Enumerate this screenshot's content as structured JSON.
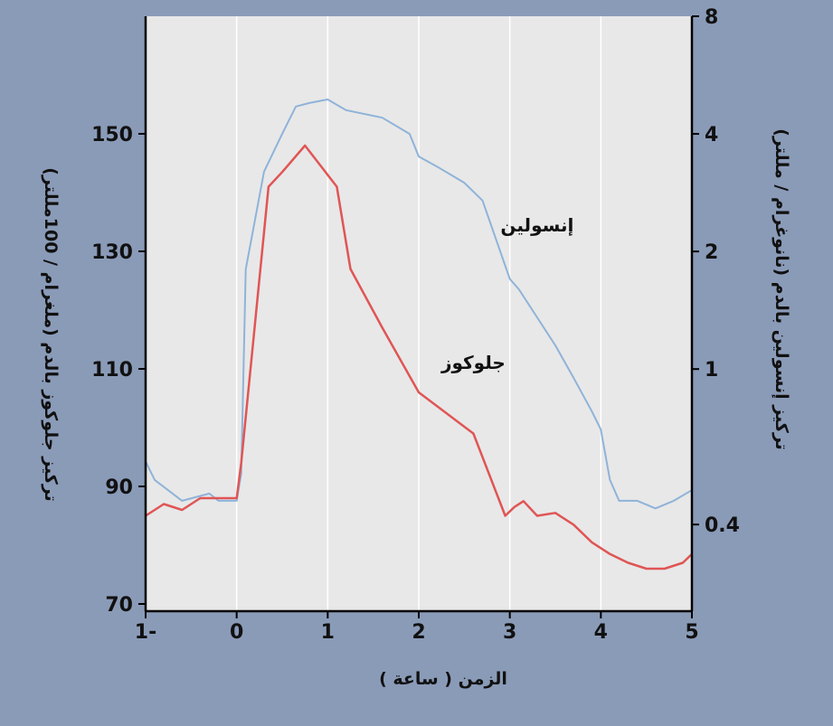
{
  "chart_data": {
    "type": "line",
    "xlabel": "الزمن ( ساعة )",
    "ylabel_left": "تركيز جلوكوز بالدم (ملغرام / 100مللتر)",
    "ylabel_right": "تركيز إنسولين بالدم (نانوغرام / مللتر)",
    "xlim": [
      -1,
      5
    ],
    "ylim_left": [
      70,
      152
    ],
    "x_ticks": [
      {
        "value": -1,
        "label": "1-"
      },
      {
        "value": 0,
        "label": "0"
      },
      {
        "value": 1,
        "label": "1"
      },
      {
        "value": 2,
        "label": "2"
      },
      {
        "value": 3,
        "label": "3"
      },
      {
        "value": 4,
        "label": "4"
      },
      {
        "value": 5,
        "label": "5"
      }
    ],
    "y_left_ticks": [
      {
        "value": 70,
        "label": "70"
      },
      {
        "value": 90,
        "label": "90"
      },
      {
        "value": 110,
        "label": "110"
      },
      {
        "value": 130,
        "label": "130"
      },
      {
        "value": 150,
        "label": "150"
      }
    ],
    "y_right_scale": "log",
    "ylim_right": [
      0.24,
      8
    ],
    "y_right_ticks": [
      {
        "value": 0.4,
        "label": "0.4"
      },
      {
        "value": 1,
        "label": "1"
      },
      {
        "value": 2,
        "label": "2"
      },
      {
        "value": 4,
        "label": "4"
      },
      {
        "value": 8,
        "label": "8"
      }
    ],
    "grid": "vertical",
    "series": [
      {
        "name": "إنسولين",
        "color": "#8fb3d9",
        "axis": "right",
        "label_at": [
          3.3,
          2.25
        ],
        "x": [
          -1,
          -0.9,
          -0.6,
          -0.3,
          -0.2,
          0,
          0.05,
          0.1,
          0.3,
          0.5,
          0.65,
          0.8,
          1.0,
          1.2,
          1.6,
          1.9,
          2.0,
          2.2,
          2.5,
          2.7,
          3.0,
          3.1,
          3.5,
          3.7,
          3.9,
          4.0,
          4.1,
          4.2,
          4.4,
          4.6,
          4.8,
          5.0
        ],
        "values": [
          0.58,
          0.52,
          0.46,
          0.48,
          0.46,
          0.46,
          0.54,
          1.8,
          3.2,
          4.0,
          4.7,
          4.8,
          4.9,
          4.6,
          4.4,
          4.0,
          3.5,
          3.3,
          3.0,
          2.7,
          1.7,
          1.6,
          1.15,
          0.95,
          0.78,
          0.7,
          0.52,
          0.46,
          0.46,
          0.44,
          0.46,
          0.49
        ]
      },
      {
        "name": "جلوكوز",
        "color": "#e05555",
        "axis": "left",
        "label_at": [
          2.6,
          110
        ],
        "x": [
          -1,
          -0.8,
          -0.6,
          -0.4,
          -0.2,
          0,
          0.05,
          0.35,
          0.5,
          0.75,
          0.9,
          1.1,
          1.25,
          1.6,
          2.0,
          2.3,
          2.6,
          2.95,
          3.05,
          3.15,
          3.3,
          3.5,
          3.7,
          3.9,
          4.1,
          4.3,
          4.5,
          4.7,
          4.9,
          5.0
        ],
        "values": [
          85,
          87,
          86,
          88,
          88,
          88,
          94,
          141,
          143.5,
          148,
          145,
          141,
          127,
          117,
          106,
          102.5,
          99,
          85,
          86.5,
          87.5,
          85,
          85.5,
          83.5,
          80.5,
          78.5,
          77,
          76,
          76,
          77,
          78.5
        ]
      }
    ]
  }
}
